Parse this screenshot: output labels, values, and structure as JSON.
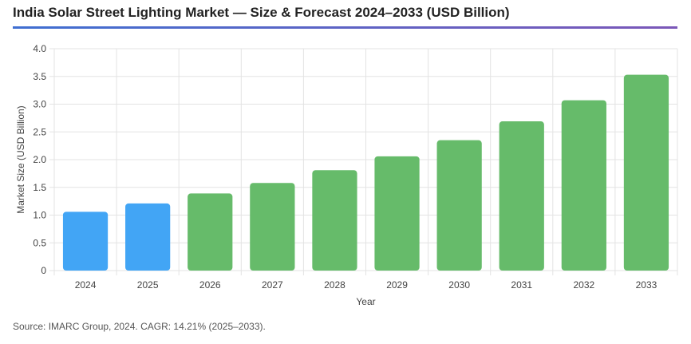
{
  "title": "India Solar Street Lighting Market — Size & Forecast 2024–2033 (USD Billion)",
  "source": "Source: IMARC Group, 2024. CAGR: 14.21% (2025–2033).",
  "colors": {
    "historical": "#42a5f5",
    "forecast": "#66bb6a",
    "grid": "#e3e3e3"
  },
  "chart_data": {
    "type": "bar",
    "xlabel": "Year",
    "ylabel": "Market Size (USD Billion)",
    "ylim": [
      0,
      4.0
    ],
    "yticks": [
      "0",
      "0.5",
      "1.0",
      "1.5",
      "2.0",
      "2.5",
      "3.0",
      "3.5",
      "4.0"
    ],
    "grid": true,
    "categories": [
      "2024",
      "2025",
      "2026",
      "2027",
      "2028",
      "2029",
      "2030",
      "2031",
      "2032",
      "2033"
    ],
    "values": [
      1.06,
      1.21,
      1.39,
      1.58,
      1.81,
      2.06,
      2.35,
      2.69,
      3.07,
      3.53
    ],
    "bar_colors": [
      "#42a5f5",
      "#42a5f5",
      "#66bb6a",
      "#66bb6a",
      "#66bb6a",
      "#66bb6a",
      "#66bb6a",
      "#66bb6a",
      "#66bb6a",
      "#66bb6a"
    ]
  }
}
